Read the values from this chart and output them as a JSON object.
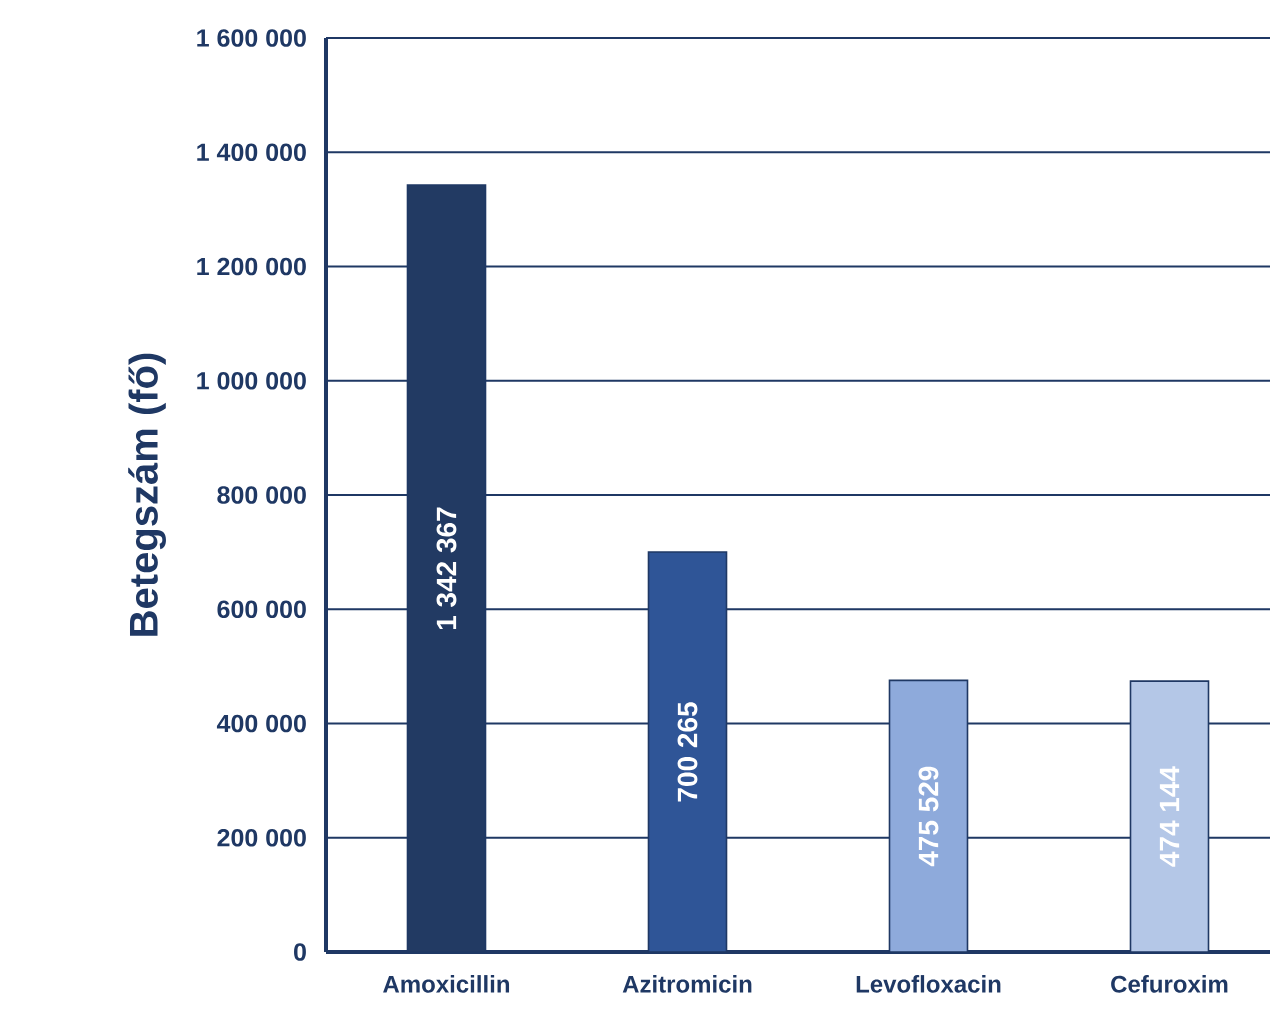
{
  "chart_data": {
    "type": "bar",
    "ylabel": "Betegszám (fő)",
    "categories": [
      "Amoxicillin",
      "Azitromicin",
      "Levofloxacin",
      "Cefuroxim"
    ],
    "values": [
      1342367,
      700265,
      475529,
      474144
    ],
    "colors": [
      "#223a63",
      "#2f5597",
      "#8eaadb",
      "#b4c7e7"
    ],
    "value_labels": [
      "1 342 367",
      "700 265",
      "475 529",
      "474 144"
    ],
    "ylim": [
      0,
      1600000
    ],
    "yticks": [
      0,
      {
        "value": 200000,
        "label": "200 000"
      },
      {
        "value": 400000,
        "label": "400 000"
      },
      {
        "value": 600000,
        "label": "600 000"
      },
      {
        "value": 800000,
        "label": "800 000"
      },
      {
        "value": 1000000,
        "label": "1 000 000"
      },
      {
        "value": 1200000,
        "label": "1 200 000"
      },
      {
        "value": 1400000,
        "label": "1 400 000"
      },
      {
        "value": 1600000,
        "label": "1 600 000"
      }
    ],
    "grid": "y"
  }
}
